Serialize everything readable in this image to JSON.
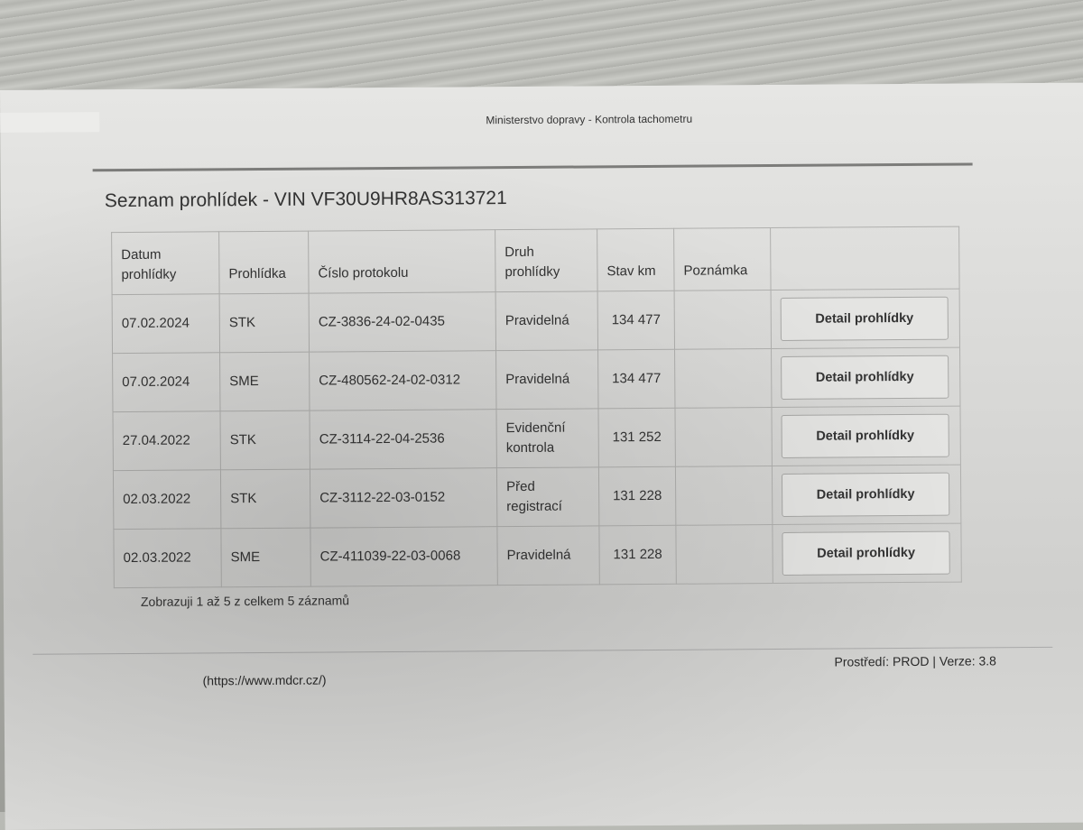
{
  "header": {
    "title": "Ministerstvo dopravy - Kontrola tachometru"
  },
  "page": {
    "heading": "Seznam prohlídek - VIN VF30U9HR8AS313721"
  },
  "table": {
    "columns": [
      "Datum prohlídky",
      "Prohlídka",
      "Číslo protokolu",
      "Druh prohlídky",
      "Stav km",
      "Poznámka",
      ""
    ],
    "rows": [
      {
        "date": "07.02.2024",
        "type": "STK",
        "protocol": "CZ-3836-24-02-0435",
        "kind": "Pravidelná",
        "km": "134 477",
        "note": "",
        "action": "Detail prohlídky"
      },
      {
        "date": "07.02.2024",
        "type": "SME",
        "protocol": "CZ-480562-24-02-0312",
        "kind": "Pravidelná",
        "km": "134 477",
        "note": "",
        "action": "Detail prohlídky"
      },
      {
        "date": "27.04.2022",
        "type": "STK",
        "protocol": "CZ-3114-22-04-2536",
        "kind": "Evidenční kontrola",
        "km": "131 252",
        "note": "",
        "action": "Detail prohlídky"
      },
      {
        "date": "02.03.2022",
        "type": "STK",
        "protocol": "CZ-3112-22-03-0152",
        "kind": "Před registrací",
        "km": "131 228",
        "note": "",
        "action": "Detail prohlídky"
      },
      {
        "date": "02.03.2022",
        "type": "SME",
        "protocol": "CZ-411039-22-03-0068",
        "kind": "Pravidelná",
        "km": "131 228",
        "note": "",
        "action": "Detail prohlídky"
      }
    ]
  },
  "footer": {
    "count": "Zobrazuji 1 až 5 z celkem 5 záznamů",
    "url": "(https://www.mdcr.cz/)",
    "env": "Prostředí: PROD | Verze: 3.8"
  }
}
